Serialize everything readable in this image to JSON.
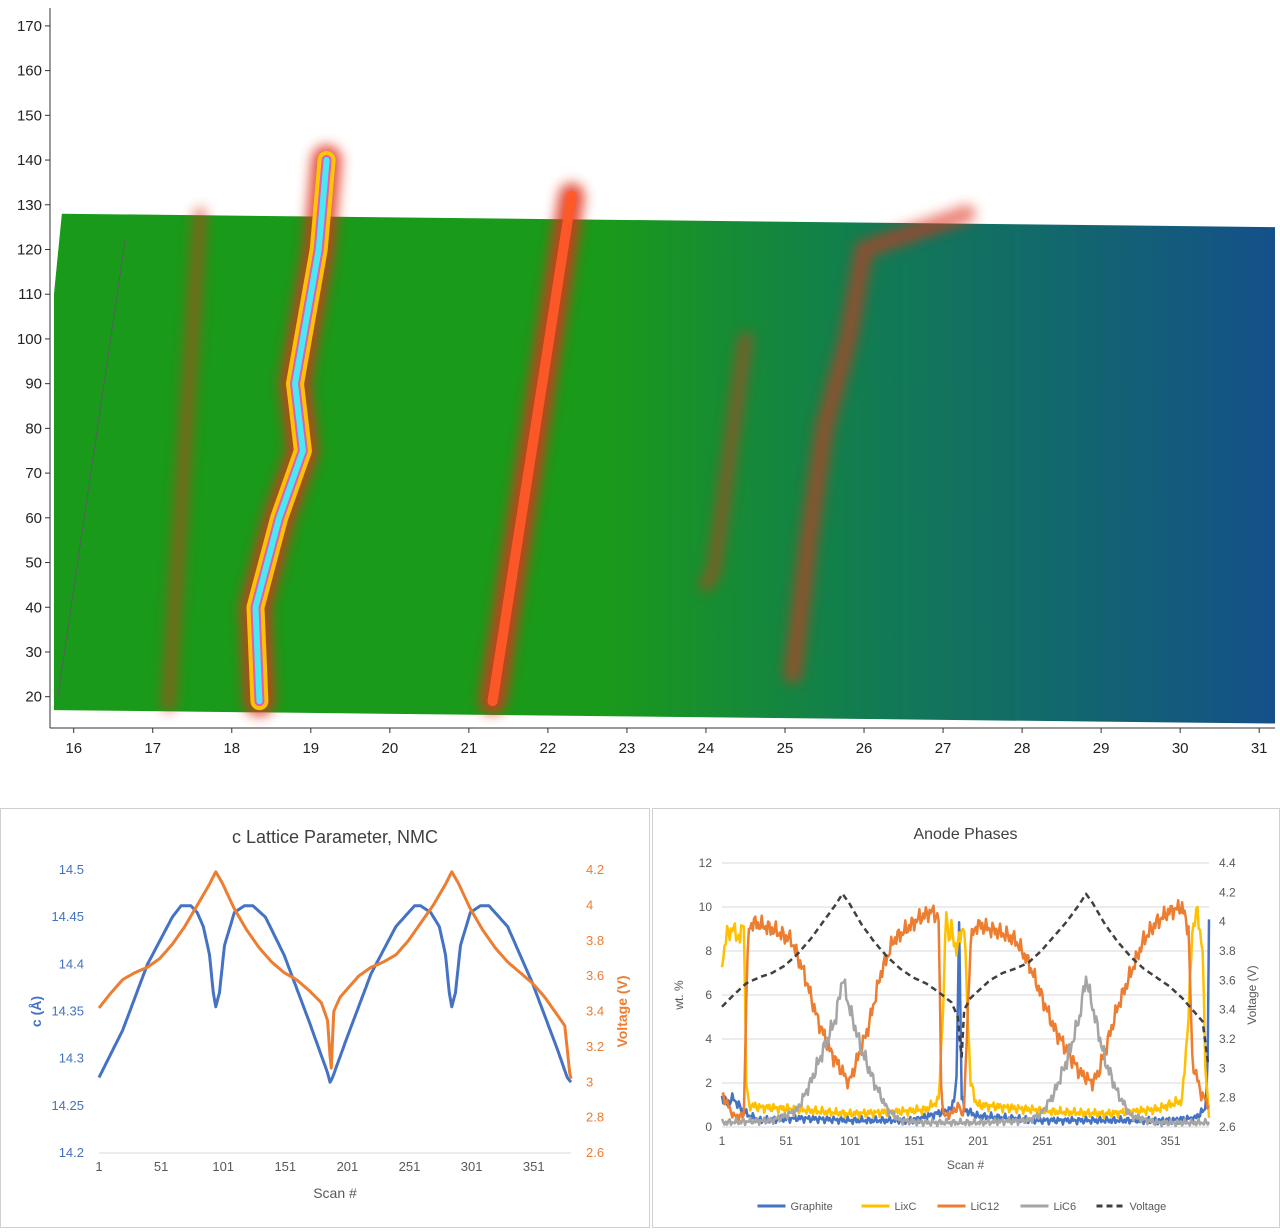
{
  "chart_data": [
    {
      "type": "heatmap",
      "title": "",
      "xlabel": "",
      "ylabel": "",
      "xlim": [
        15.7,
        31.2
      ],
      "ylim": [
        13,
        174
      ],
      "x_ticks": [
        "16",
        "17",
        "18",
        "19",
        "20",
        "21",
        "22",
        "23",
        "24",
        "25",
        "26",
        "27",
        "28",
        "29",
        "30",
        "31"
      ],
      "y_ticks": [
        "20",
        "30",
        "40",
        "50",
        "60",
        "70",
        "80",
        "90",
        "100",
        "110",
        "120",
        "130",
        "140",
        "150",
        "160",
        "170"
      ],
      "colors": {
        "background": "#1a9a1a",
        "blue_region": "#14508a",
        "peak": "#e0321a",
        "hot": "#ffd000",
        "peak_top": "#4ae8f0"
      },
      "features": [
        {
          "name": "peak-a",
          "points": [
            [
              17.2,
              18
            ],
            [
              17.6,
              128
            ]
          ],
          "strength": 0.6
        },
        {
          "name": "peak-b",
          "points": [
            [
              18.35,
              19
            ],
            [
              18.3,
              40
            ],
            [
              18.6,
              60
            ],
            [
              18.9,
              75
            ],
            [
              18.8,
              90
            ],
            [
              18.9,
              100
            ],
            [
              19.1,
              120
            ],
            [
              19.2,
              140
            ]
          ],
          "strength": 1.0
        },
        {
          "name": "peak-c",
          "points": [
            [
              21.3,
              19
            ],
            [
              22.3,
              132
            ]
          ],
          "strength": 1.0
        },
        {
          "name": "peak-d",
          "points": [
            [
              24.0,
              45
            ],
            [
              24.1,
              48
            ],
            [
              24.5,
              100
            ]
          ],
          "strength": 0.6
        },
        {
          "name": "peak-e",
          "points": [
            [
              25.1,
              25
            ],
            [
              25.3,
              55
            ],
            [
              25.5,
              80
            ],
            [
              25.8,
              100
            ],
            [
              26.0,
              120
            ],
            [
              27.3,
              128
            ]
          ],
          "strength": 0.7
        }
      ]
    },
    {
      "type": "line",
      "title": "c Lattice Parameter, NMC",
      "xlabel": "Scan #",
      "ylabel": "c (Å)",
      "y2label": "Voltage (V)",
      "xlim": [
        1,
        381
      ],
      "ylim": [
        14.2,
        14.5
      ],
      "y2lim": [
        2.6,
        4.2
      ],
      "x_ticks": [
        "1",
        "51",
        "101",
        "151",
        "201",
        "251",
        "301",
        "351"
      ],
      "y_ticks": [
        "14.2",
        "14.25",
        "14.3",
        "14.35",
        "14.4",
        "14.45",
        "14.5"
      ],
      "y2_ticks": [
        "2.6",
        "2.8",
        "3",
        "3.2",
        "3.4",
        "3.6",
        "3.8",
        "4",
        "4.2"
      ],
      "grid": false,
      "series": [
        {
          "axis": "left",
          "color": "#4472c4",
          "x": [
            1,
            20,
            40,
            60,
            67,
            75,
            80,
            85,
            90,
            93,
            95,
            98,
            102,
            110,
            118,
            125,
            135,
            150,
            170,
            185,
            187,
            189,
            200,
            220,
            240,
            255,
            260,
            268,
            275,
            280,
            283,
            285,
            288,
            292,
            300,
            308,
            315,
            330,
            350,
            370,
            378,
            381
          ],
          "values": [
            14.28,
            14.33,
            14.4,
            14.45,
            14.462,
            14.462,
            14.455,
            14.44,
            14.41,
            14.37,
            14.355,
            14.37,
            14.42,
            14.455,
            14.462,
            14.462,
            14.45,
            14.41,
            14.34,
            14.285,
            14.275,
            14.28,
            14.32,
            14.39,
            14.44,
            14.462,
            14.462,
            14.455,
            14.44,
            14.41,
            14.37,
            14.355,
            14.37,
            14.42,
            14.455,
            14.462,
            14.462,
            14.44,
            14.38,
            14.31,
            14.28,
            14.275
          ]
        },
        {
          "axis": "right",
          "color": "#ed7d31",
          "x": [
            1,
            10,
            20,
            30,
            40,
            50,
            60,
            70,
            80,
            90,
            95,
            100,
            110,
            120,
            130,
            140,
            150,
            160,
            170,
            180,
            185,
            187,
            188,
            190,
            195,
            200,
            210,
            220,
            230,
            240,
            250,
            260,
            270,
            280,
            285,
            290,
            300,
            310,
            320,
            330,
            340,
            350,
            360,
            370,
            376,
            380,
            381
          ],
          "values": [
            3.42,
            3.5,
            3.58,
            3.62,
            3.65,
            3.7,
            3.78,
            3.88,
            4.0,
            4.12,
            4.19,
            4.13,
            3.98,
            3.86,
            3.76,
            3.68,
            3.62,
            3.58,
            3.52,
            3.45,
            3.35,
            3.15,
            3.08,
            3.4,
            3.48,
            3.52,
            3.6,
            3.65,
            3.68,
            3.72,
            3.8,
            3.9,
            4.0,
            4.12,
            4.19,
            4.13,
            3.98,
            3.86,
            3.76,
            3.68,
            3.62,
            3.56,
            3.48,
            3.38,
            3.32,
            3.05,
            3.02
          ]
        }
      ]
    },
    {
      "type": "line",
      "title": "Anode Phases",
      "xlabel": "Scan #",
      "ylabel": "wt. %",
      "y2label": "Voltage (V)",
      "xlim": [
        1,
        381
      ],
      "ylim": [
        0,
        12
      ],
      "y2lim": [
        2.6,
        4.4
      ],
      "x_ticks": [
        "1",
        "51",
        "101",
        "151",
        "201",
        "251",
        "301",
        "351"
      ],
      "y_ticks": [
        "0",
        "2",
        "4",
        "6",
        "8",
        "10",
        "12"
      ],
      "y2_ticks": [
        "2.6",
        "2.8",
        "3",
        "3.2",
        "3.4",
        "3.6",
        "3.8",
        "4",
        "4.2",
        "4.4"
      ],
      "grid": true,
      "legend": "bottom",
      "series": [
        {
          "name": "Graphite",
          "axis": "left",
          "color": "#4472c4",
          "dash": false,
          "x": [
            1,
            5,
            10,
            15,
            20,
            30,
            60,
            100,
            150,
            180,
            184,
            186,
            188,
            190,
            200,
            250,
            300,
            350,
            370,
            378,
            380,
            381
          ],
          "values": [
            1.4,
            1.1,
            1.3,
            0.9,
            0.6,
            0.3,
            0.4,
            0.3,
            0.3,
            0.8,
            2.0,
            9.2,
            1.5,
            0.8,
            0.5,
            0.3,
            0.3,
            0.3,
            0.4,
            0.8,
            3.0,
            9.2
          ]
        },
        {
          "name": "LixC",
          "axis": "left",
          "color": "#ffc000",
          "dash": false,
          "x": [
            1,
            5,
            10,
            15,
            18,
            20,
            22,
            30,
            60,
            100,
            140,
            160,
            170,
            174,
            176,
            178,
            180,
            184,
            188,
            190,
            195,
            200,
            220,
            260,
            300,
            340,
            360,
            365,
            368,
            372,
            376,
            378,
            381
          ],
          "values": [
            7.5,
            8.8,
            9.0,
            8.5,
            9.5,
            2.0,
            1.0,
            0.9,
            0.8,
            0.6,
            0.7,
            0.8,
            1.2,
            6.0,
            10.0,
            8.5,
            9.0,
            8.0,
            9.0,
            9.0,
            2.0,
            1.0,
            0.9,
            0.7,
            0.6,
            0.8,
            1.2,
            5.0,
            9.0,
            9.8,
            8.0,
            3.0,
            0.5
          ]
        },
        {
          "name": "LiC12",
          "axis": "left",
          "color": "#ed7d31",
          "dash": false,
          "x": [
            1,
            10,
            18,
            20,
            22,
            25,
            40,
            55,
            65,
            75,
            85,
            95,
            100,
            105,
            115,
            125,
            135,
            145,
            155,
            165,
            170,
            172,
            174,
            180,
            186,
            188,
            190,
            195,
            200,
            210,
            220,
            230,
            240,
            250,
            260,
            270,
            280,
            290,
            295,
            300,
            310,
            320,
            330,
            340,
            350,
            360,
            365,
            368,
            375,
            381
          ],
          "values": [
            1.5,
            0.5,
            0.5,
            6.0,
            9.0,
            9.3,
            9.0,
            8.5,
            7.0,
            5.0,
            3.5,
            2.5,
            2.0,
            2.8,
            4.5,
            7.0,
            8.5,
            9.0,
            9.5,
            9.8,
            9.5,
            2.0,
            0.5,
            0.6,
            1.0,
            0.5,
            1.0,
            8.5,
            9.2,
            9.0,
            8.8,
            8.5,
            7.5,
            6.0,
            4.5,
            3.5,
            2.5,
            2.0,
            2.5,
            3.5,
            5.5,
            7.0,
            8.5,
            9.3,
            9.8,
            10.0,
            9.0,
            3.0,
            1.5,
            1.0
          ]
        },
        {
          "name": "LiC6",
          "axis": "left",
          "color": "#a5a5a5",
          "dash": false,
          "x": [
            1,
            40,
            50,
            60,
            70,
            80,
            90,
            95,
            100,
            105,
            110,
            120,
            130,
            140,
            160,
            200,
            240,
            250,
            260,
            270,
            280,
            285,
            290,
            300,
            310,
            320,
            340,
            381
          ],
          "values": [
            0.2,
            0.3,
            0.5,
            0.8,
            2.0,
            3.5,
            5.0,
            6.8,
            5.5,
            4.5,
            3.5,
            2.0,
            0.8,
            0.3,
            0.2,
            0.2,
            0.3,
            0.6,
            1.5,
            3.0,
            5.0,
            6.8,
            5.5,
            3.0,
            1.5,
            0.5,
            0.2,
            0.2
          ]
        },
        {
          "name": "Voltage",
          "axis": "right",
          "color": "#404040",
          "dash": true,
          "x": [
            1,
            10,
            20,
            30,
            40,
            50,
            60,
            70,
            80,
            90,
            95,
            100,
            110,
            120,
            130,
            140,
            150,
            160,
            170,
            180,
            185,
            187,
            188,
            190,
            195,
            200,
            210,
            220,
            230,
            240,
            250,
            260,
            270,
            280,
            285,
            290,
            300,
            310,
            320,
            330,
            340,
            350,
            360,
            370,
            376,
            380,
            381
          ],
          "values": [
            3.42,
            3.5,
            3.58,
            3.62,
            3.65,
            3.7,
            3.78,
            3.88,
            4.0,
            4.12,
            4.19,
            4.13,
            3.98,
            3.86,
            3.76,
            3.68,
            3.62,
            3.58,
            3.52,
            3.45,
            3.35,
            3.15,
            3.08,
            3.4,
            3.48,
            3.52,
            3.6,
            3.65,
            3.68,
            3.72,
            3.8,
            3.9,
            4.0,
            4.12,
            4.19,
            4.13,
            3.98,
            3.86,
            3.76,
            3.68,
            3.62,
            3.56,
            3.48,
            3.38,
            3.32,
            3.05,
            3.02
          ]
        }
      ]
    }
  ]
}
